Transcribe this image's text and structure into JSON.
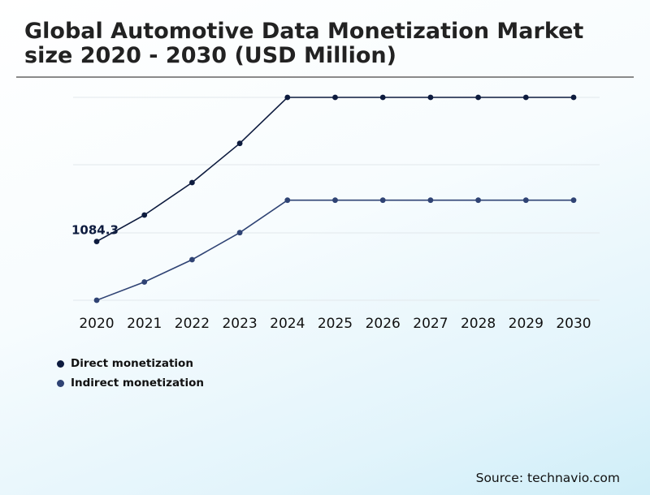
{
  "title": "Global Automotive Data Monetization Market size 2020 - 2030 (USD Million)",
  "source": "Source: technavio.com",
  "colors": {
    "direct": "#0d1b3e",
    "indirect": "#2f4374",
    "grid": "#e2e8ec",
    "rule": "#8a8a8a"
  },
  "chart_data": {
    "type": "line",
    "title": "Global Automotive Data Monetization Market size 2020 - 2030 (USD Million)",
    "x": [
      "2020",
      "2021",
      "2022",
      "2023",
      "2024",
      "2025",
      "2026",
      "2027",
      "2028",
      "2029",
      "2030"
    ],
    "series": [
      {
        "name": "Direct monetization",
        "values": [
          1084.3,
          1280,
          1520,
          1810,
          2150,
          2150,
          2150,
          2150,
          2150,
          2150,
          2150
        ]
      },
      {
        "name": "Indirect monetization",
        "values": [
          650,
          785,
          950,
          1150,
          1390,
          1390,
          1390,
          1390,
          1390,
          1390,
          1390
        ]
      }
    ],
    "data_labels": [
      {
        "series": "Direct monetization",
        "x": "2020",
        "text": "1084.3"
      }
    ],
    "ylim": [
      650,
      2150
    ],
    "xlabel": "",
    "ylabel": "",
    "grid": true,
    "legend": "bottom-left"
  }
}
